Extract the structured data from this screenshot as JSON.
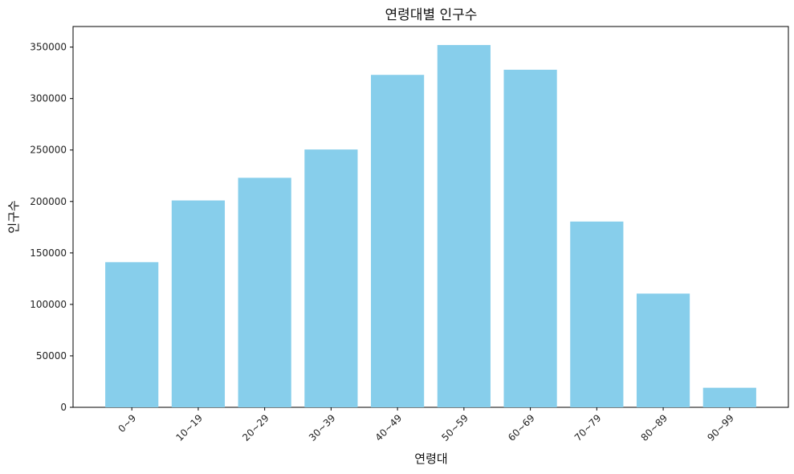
{
  "chart_data": {
    "type": "bar",
    "title": "연령대별 인구수",
    "xlabel": "연령대",
    "ylabel": "인구수",
    "categories": [
      "0~9",
      "10~19",
      "20~29",
      "30~39",
      "40~49",
      "50~59",
      "60~69",
      "70~79",
      "80~89",
      "90~99"
    ],
    "values": [
      141000,
      201000,
      223000,
      250500,
      323000,
      352000,
      328000,
      180500,
      110500,
      19000
    ],
    "ylim": [
      0,
      370000
    ],
    "yticks": [
      "0",
      "50000",
      "100000",
      "150000",
      "200000",
      "250000",
      "300000",
      "350000"
    ],
    "bar_color": "#87ceeb",
    "grid": false,
    "legend": "none"
  }
}
